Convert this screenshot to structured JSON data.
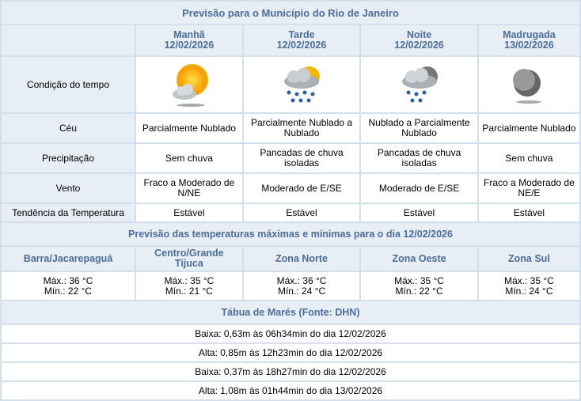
{
  "title": "Previsão para o Município do Rio de Janeiro",
  "periods": [
    {
      "name": "Manhã",
      "date": "12/02/2026",
      "icon": "sun-cloud-icon",
      "ceu": "Parcialmente Nublado",
      "precip": "Sem chuva",
      "vento": "Fraco a Moderado de N/NE",
      "tend": "Estável"
    },
    {
      "name": "Tarde",
      "date": "12/02/2026",
      "icon": "sun-cloud-rain-icon",
      "ceu": "Parcialmente Nublado a Nublado",
      "precip": "Pancadas de chuva isoladas",
      "vento": "Moderado de E/SE",
      "tend": "Estável"
    },
    {
      "name": "Noite",
      "date": "12/02/2026",
      "icon": "moon-cloud-rain-icon",
      "ceu": "Nublado a Parcialmente Nublado",
      "precip": "Pancadas de chuva isoladas",
      "vento": "Moderado de E/SE",
      "tend": "Estável"
    },
    {
      "name": "Madrugada",
      "date": "13/02/2026",
      "icon": "moon-icon",
      "ceu": "Parcialmente Nublado",
      "precip": "Sem chuva",
      "vento": "Fraco a Moderado de NE/E",
      "tend": "Estável"
    }
  ],
  "labels": {
    "cond": "Condição do tempo",
    "ceu": "Céu",
    "precip": "Precipitação",
    "vento": "Vento",
    "tend": "Tendência da Temperatura"
  },
  "temp_title": "Previsão das temperaturas máximas e mínimas para o dia 12/02/2026",
  "zones": [
    {
      "name": "Barra/Jacarepaguá",
      "max": "Máx.: 36 °C",
      "min": "Mín.: 22 °C"
    },
    {
      "name": "Centro/Grande Tijuca",
      "max": "Máx.: 35 °C",
      "min": "Mín.: 21 °C"
    },
    {
      "name": "Zona Norte",
      "max": "Máx.: 36 °C",
      "min": "Mín.: 24 °C"
    },
    {
      "name": "Zona Oeste",
      "max": "Máx.: 35 °C",
      "min": "Mín.: 22 °C"
    },
    {
      "name": "Zona Sul",
      "max": "Máx.: 35 °C",
      "min": "Mín.: 24 °C"
    }
  ],
  "tide_title": "Tábua de Marés (Fonte: DHN)",
  "tides": [
    "Baixa: 0,63m às 06h34min do dia 12/02/2026",
    "Alta: 0,85m às 12h23min do dia 12/02/2026",
    "Baixa: 0,37m às 18h27min do dia 12/02/2026",
    "Alta: 1,08m às 01h44min do dia 13/02/2026"
  ]
}
